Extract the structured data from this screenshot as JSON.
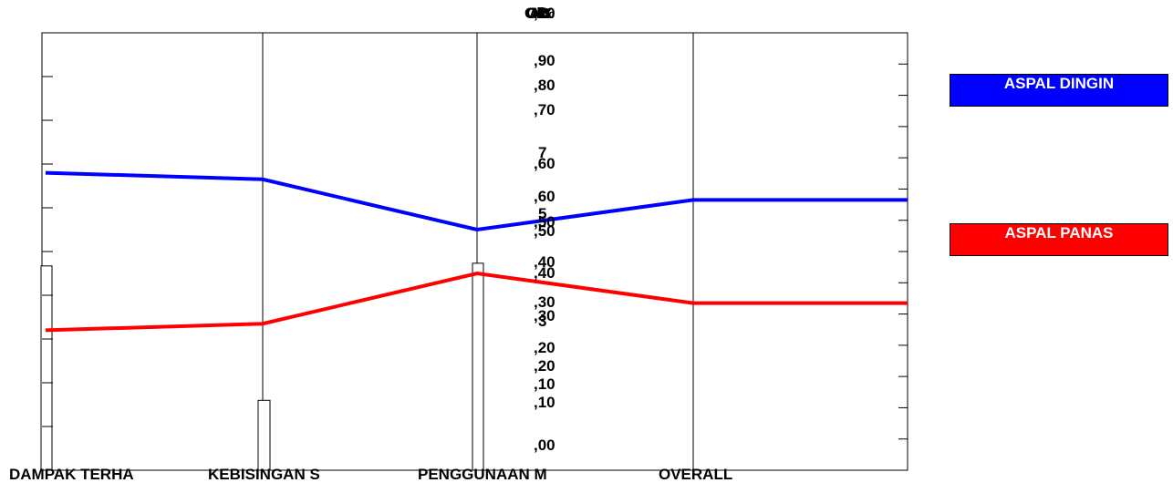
{
  "chart_data": {
    "type": "line",
    "title": "",
    "categories": [
      "DAMPAK TERHA",
      "KEBISINGAN S",
      "PENGGUNAAN M",
      "OVERALL"
    ],
    "axis_titles": [
      {
        "text": "Ok",
        "overlapping": true
      },
      {
        "text": "Alt",
        "overlapping": true
      },
      {
        "text": "%",
        "overlapping": true
      },
      {
        "text": "Ok",
        "overlapping": true
      }
    ],
    "axes": [
      {
        "name": "axis-1",
        "tick_labels": [
          ",00",
          ",10",
          ",20",
          ",30",
          ",40",
          ",50",
          ",60",
          ",70"
        ],
        "ylim": [
          0,
          0.7
        ]
      },
      {
        "name": "axis-2",
        "tick_labels": [
          ",10",
          ",20",
          ",30",
          ",40",
          ",50",
          ",60",
          ",70",
          ",80",
          ",90"
        ],
        "ylim": [
          0,
          1.0
        ]
      },
      {
        "name": "axis-3",
        "tick_labels": [
          "3",
          "5",
          "7"
        ]
      }
    ],
    "series": [
      {
        "name": "ASPAL DINGIN",
        "color": "#0000ff",
        "values": [
          0.68,
          0.665,
          0.55,
          0.618
        ]
      },
      {
        "name": "ASPAL PANAS",
        "color": "#ff0000",
        "values": [
          0.32,
          0.335,
          0.45,
          0.382
        ]
      }
    ],
    "bars": {
      "color": "#ffffff",
      "values": [
        3.8,
        1.3,
        3.85
      ]
    },
    "legend_position": "right",
    "grid": "vertical lines at categories"
  },
  "legend": {
    "items": [
      {
        "label": "ASPAL DINGIN",
        "color": "#0000ff"
      },
      {
        "label": "ASPAL PANAS",
        "color": "#ff0000"
      }
    ]
  }
}
